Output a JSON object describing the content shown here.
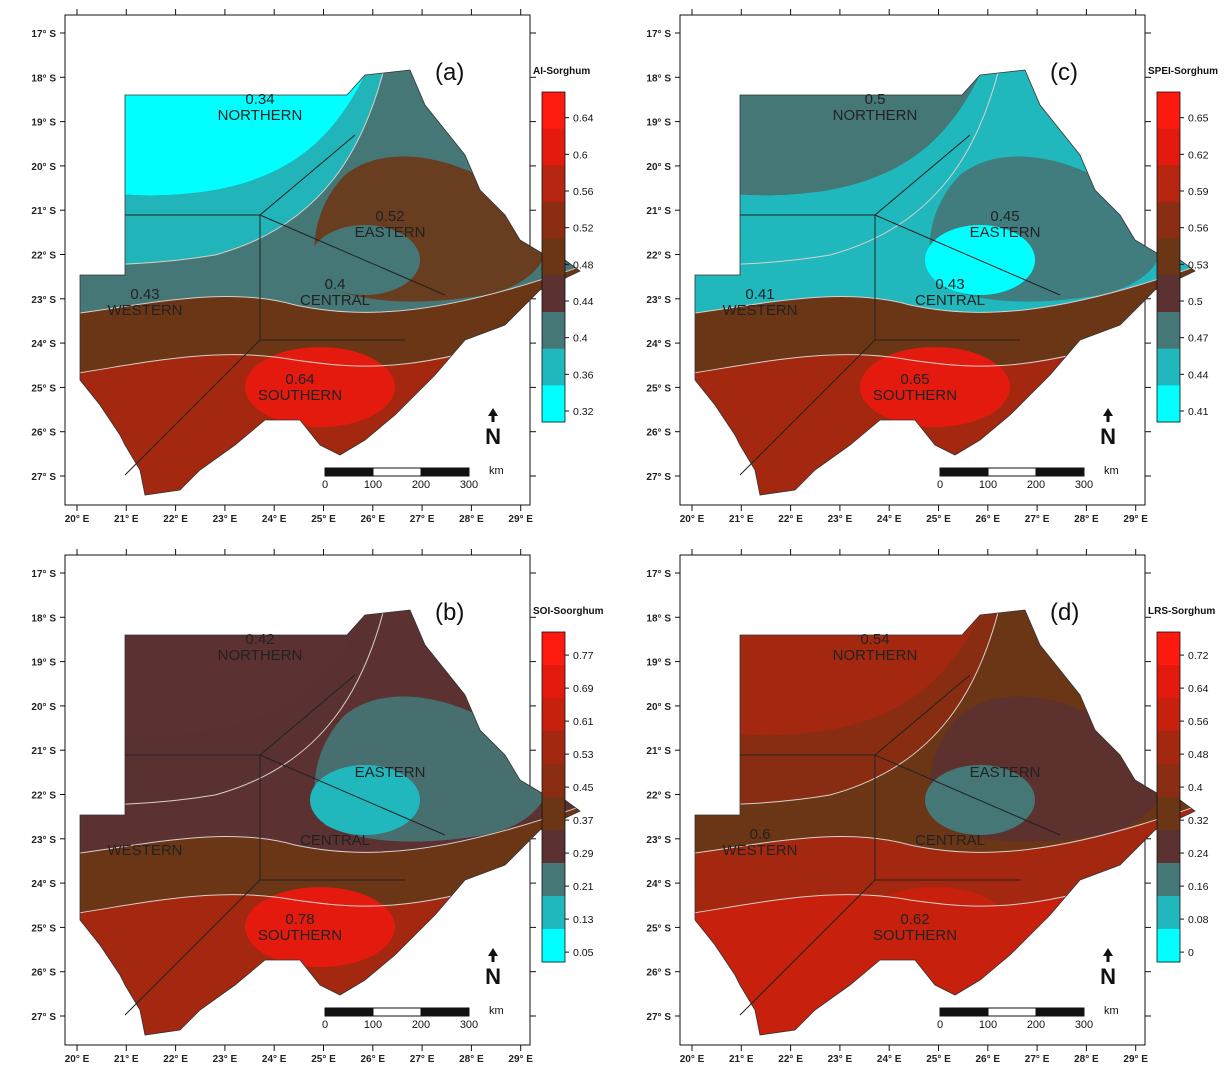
{
  "colors": {
    "background": "#ffffff",
    "outside": "#ffffff",
    "district_border": "#222222",
    "contour_line": "#d9cfcb",
    "ramp": [
      "#00ffff",
      "#20b8bd",
      "#457777",
      "#5b3131",
      "#6b3616",
      "#8a2d12",
      "#a42810",
      "#c7200d",
      "#e51a0f",
      "#ff1a0f"
    ]
  },
  "axes": {
    "lon_labels": [
      "20° E",
      "21° E",
      "22° E",
      "23° E",
      "24° E",
      "25° E",
      "26° E",
      "27° E",
      "28° E",
      "29° E"
    ],
    "lat_labels": [
      "17° S",
      "18° S",
      "19° S",
      "20° S",
      "21° S",
      "22° S",
      "23° S",
      "24° S",
      "25° S",
      "26° S",
      "27° S"
    ]
  },
  "regions": {
    "northern": "NORTHERN",
    "eastern": "EASTERN",
    "central": "CENTRAL",
    "western": "WESTERN",
    "southern": "SOUTHERN"
  },
  "scale_bar": {
    "unit": "km",
    "labels": [
      "0",
      "100",
      "200",
      "300"
    ]
  },
  "north_arrow": {
    "label": "N"
  },
  "panels": [
    {
      "id": "a",
      "letter": "(a)",
      "legend_title": "AI-Sorghum",
      "legend_ticks": [
        "0.64",
        "0.6",
        "0.56",
        "0.52",
        "0.48",
        "0.44",
        "0.4",
        "0.36",
        "0.32"
      ],
      "legend_colors": [
        "#ff1a0f",
        "#e51a0f",
        "#b52510",
        "#8a2d12",
        "#6b3616",
        "#5b3131",
        "#457777",
        "#20b8bd",
        "#00ffff"
      ],
      "values": {
        "northern": "0.34",
        "eastern": "0.52",
        "central": "0.4",
        "western": "0.43",
        "southern": "0.64"
      },
      "fields": {
        "north": "#00ffff",
        "upper": "#20b8bd",
        "mid": "#457777",
        "low": "#6b3616",
        "south": "#a42810",
        "spot": "#e51a0f",
        "east": "#6b3616",
        "hole": "#457777"
      }
    },
    {
      "id": "c",
      "letter": "(c)",
      "legend_title": "SPEI-Sorghum",
      "legend_ticks": [
        "0.65",
        "0.62",
        "0.59",
        "0.56",
        "0.53",
        "0.5",
        "0.47",
        "0.44",
        "0.41"
      ],
      "legend_colors": [
        "#ff1a0f",
        "#e51a0f",
        "#b52510",
        "#8a2d12",
        "#6b3616",
        "#5b3131",
        "#457777",
        "#20b8bd",
        "#00ffff"
      ],
      "values": {
        "northern": "0.5",
        "eastern": "0.45",
        "central": "0.43",
        "western": "0.41",
        "southern": "0.65"
      },
      "fields": {
        "north": "#457777",
        "upper": "#20b8bd",
        "mid": "#20b8bd",
        "low": "#6b3616",
        "south": "#a42810",
        "spot": "#e51a0f",
        "east": "#457777",
        "hole": "#00ffff"
      }
    },
    {
      "id": "b",
      "letter": "(b)",
      "legend_title": "SOI-Soorghum",
      "legend_ticks": [
        "0.77",
        "0.69",
        "0.61",
        "0.53",
        "0.45",
        "0.37",
        "0.29",
        "0.21",
        "0.13",
        "0.05"
      ],
      "legend_colors": [
        "#ff1a0f",
        "#e51a0f",
        "#c7200d",
        "#a42810",
        "#8a2d12",
        "#6b3616",
        "#5b3131",
        "#457777",
        "#20b8bd",
        "#00ffff"
      ],
      "values": {
        "northern": "0.42",
        "eastern": "",
        "central": "",
        "western": "",
        "southern": "0.78"
      },
      "fields": {
        "north": "#5b3131",
        "upper": "#5b3131",
        "mid": "#5b3131",
        "low": "#6b3616",
        "south": "#a42810",
        "spot": "#e51a0f",
        "east": "#457777",
        "hole": "#20b8bd"
      }
    },
    {
      "id": "d",
      "letter": "(d)",
      "legend_title": "LRS-Sorghum",
      "legend_ticks": [
        "0.72",
        "0.64",
        "0.56",
        "0.48",
        "0.4",
        "0.32",
        "0.24",
        "0.16",
        "0.08",
        "0"
      ],
      "legend_colors": [
        "#ff1a0f",
        "#e51a0f",
        "#c7200d",
        "#a42810",
        "#8a2d12",
        "#6b3616",
        "#5b3131",
        "#457777",
        "#20b8bd",
        "#00ffff"
      ],
      "values": {
        "northern": "0.54",
        "eastern": "",
        "central": "",
        "western": "0.6",
        "southern": "0.62"
      },
      "fields": {
        "north": "#a42810",
        "upper": "#8a2d12",
        "mid": "#6b3616",
        "low": "#a42810",
        "south": "#c7200d",
        "spot": "#c7200d",
        "east": "#5b3131",
        "hole": "#457777"
      }
    }
  ]
}
